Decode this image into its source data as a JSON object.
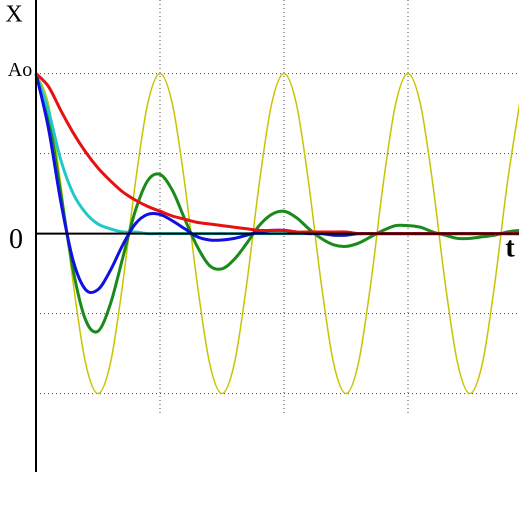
{
  "chart_data": {
    "type": "line",
    "y_label": "X",
    "x_label": "t",
    "xlim": [
      0,
      3.9
    ],
    "ylim": [
      -1.49,
      1.46
    ],
    "yticks": [
      {
        "value": 1,
        "label": "Ao"
      },
      0
    ],
    "xgrid": [
      1,
      2,
      3
    ],
    "ygrid": [
      1,
      0.5,
      -0.5,
      -1
    ],
    "grid": true,
    "x": [
      0,
      0.1,
      0.2,
      0.3,
      0.4,
      0.5,
      0.6,
      0.7,
      0.8,
      0.9,
      1,
      1.1,
      1.2,
      1.3,
      1.4,
      1.5,
      1.6,
      1.7,
      1.8,
      1.9,
      2,
      2.1,
      2.2,
      2.3,
      2.4,
      2.5,
      2.6,
      2.7,
      2.8,
      2.9,
      3,
      3.1,
      3.2,
      3.3,
      3.4,
      3.5,
      3.6,
      3.7,
      3.8,
      3.9
    ],
    "series": [
      {
        "color": "#c8c400",
        "width": 1.5,
        "values": [
          1,
          0.81,
          0.31,
          -0.31,
          -0.81,
          -1,
          -0.81,
          -0.31,
          0.31,
          0.81,
          1,
          0.81,
          0.31,
          -0.31,
          -0.81,
          -1,
          -0.81,
          -0.31,
          0.31,
          0.81,
          1,
          0.81,
          0.31,
          -0.31,
          -0.81,
          -1,
          -0.81,
          -0.31,
          0.31,
          0.81,
          1,
          0.81,
          0.31,
          -0.31,
          -0.81,
          -1,
          -0.81,
          -0.31,
          0.31,
          0.81
        ]
      },
      {
        "color": "#1a8a1a",
        "width": 3,
        "values": [
          1,
          0.73,
          0.25,
          -0.23,
          -0.54,
          -0.61,
          -0.44,
          -0.15,
          0.14,
          0.33,
          0.37,
          0.27,
          0.09,
          -0.08,
          -0.2,
          -0.22,
          -0.16,
          -0.06,
          0.05,
          0.12,
          0.14,
          0.1,
          0.03,
          -0.03,
          -0.07,
          -0.08,
          -0.06,
          -0.02,
          0.02,
          0.05,
          0.05,
          0.04,
          0.01,
          -0.01,
          -0.03,
          -0.03,
          -0.02,
          -0.01,
          0.01,
          0.02
        ]
      },
      {
        "color": "#20c8c8",
        "width": 3,
        "values": [
          1,
          0.77,
          0.46,
          0.25,
          0.13,
          0.06,
          0.03,
          0.01,
          0.01,
          0,
          0,
          0,
          0,
          0,
          0,
          0,
          0,
          0,
          0,
          0,
          0,
          0,
          0,
          0,
          0,
          0,
          0,
          0,
          0,
          0,
          0,
          0,
          0,
          0,
          0,
          0,
          0,
          0,
          0,
          0
        ]
      },
      {
        "color": "#1010e0",
        "width": 3,
        "values": [
          1,
          0.66,
          0.2,
          -0.17,
          -0.35,
          -0.35,
          -0.23,
          -0.07,
          0.06,
          0.12,
          0.12,
          0.08,
          0.03,
          -0.02,
          -0.04,
          -0.04,
          -0.03,
          -0.01,
          0.01,
          0.02,
          0.02,
          0.01,
          0,
          0,
          -0.01,
          -0.01,
          0,
          0,
          0,
          0,
          0,
          0,
          0,
          0,
          0,
          0,
          0,
          0,
          0,
          0
        ]
      },
      {
        "color": "#e81010",
        "width": 3,
        "values": [
          1,
          0.92,
          0.77,
          0.63,
          0.51,
          0.41,
          0.33,
          0.26,
          0.21,
          0.17,
          0.14,
          0.11,
          0.09,
          0.07,
          0.06,
          0.05,
          0.04,
          0.03,
          0.02,
          0.02,
          0.02,
          0.01,
          0.01,
          0.01,
          0.01,
          0.01,
          0,
          0,
          0,
          0,
          0,
          0,
          0,
          0,
          0,
          0,
          0,
          0,
          0,
          0
        ]
      }
    ]
  }
}
